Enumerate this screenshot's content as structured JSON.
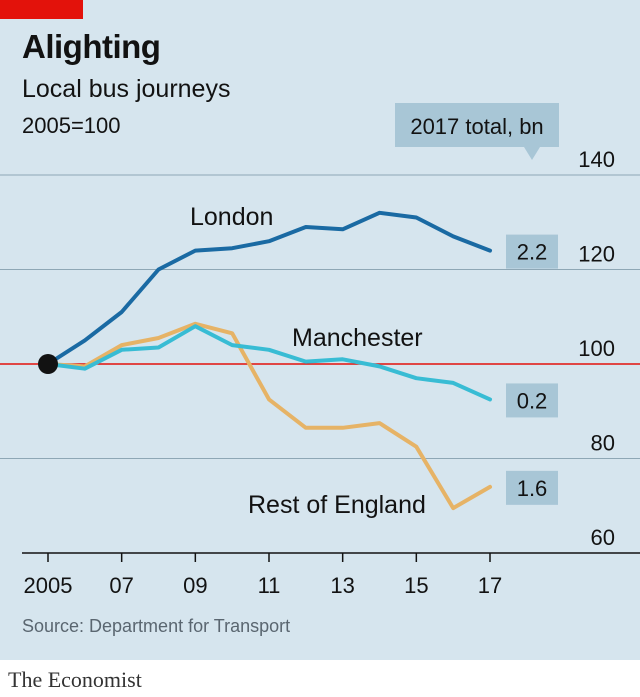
{
  "title": "Alighting",
  "subtitle": "Local bus journeys",
  "base_note": "2005=100",
  "source": "Source: Department for Transport",
  "brand": "The Economist",
  "colors": {
    "background": "#d6e5ee",
    "accent": "#e3120b",
    "london": "#1a6aa3",
    "manchester": "#38bcd4",
    "rest_of_england": "#e6b366",
    "value_box": "#a8c6d6",
    "grid": "#8ea7b5",
    "baseline_100": "#e3120b"
  },
  "chart_data": {
    "type": "line",
    "title": "Alighting",
    "subtitle": "Local bus journeys",
    "ylabel": "2005=100",
    "x": [
      2005,
      2006,
      2007,
      2008,
      2009,
      2010,
      2011,
      2012,
      2013,
      2014,
      2015,
      2016,
      2017
    ],
    "x_tick_values": [
      2005,
      2007,
      2009,
      2011,
      2013,
      2015,
      2017
    ],
    "x_tick_labels": [
      "2005",
      "07",
      "09",
      "11",
      "13",
      "15",
      "17"
    ],
    "ylim": [
      60,
      140
    ],
    "y_ticks": [
      60,
      80,
      100,
      120,
      140
    ],
    "grid": true,
    "legend_title": "2017 total, bn",
    "series": [
      {
        "name": "London",
        "color": "#1a6aa3",
        "values": [
          100,
          105,
          111,
          120,
          124,
          124.5,
          126,
          129,
          128.5,
          132,
          131,
          127,
          124
        ],
        "total_2017_bn": "2.2"
      },
      {
        "name": "Manchester",
        "color": "#38bcd4",
        "values": [
          100,
          99,
          103,
          103.5,
          108,
          104,
          103,
          100.5,
          101,
          99.5,
          97,
          96,
          92.5
        ],
        "total_2017_bn": "0.2"
      },
      {
        "name": "Rest of England",
        "color": "#e6b366",
        "values": [
          100,
          99.5,
          104,
          105.5,
          108.5,
          106.5,
          92.5,
          86.5,
          86.5,
          87.5,
          82.5,
          69.5,
          74
        ],
        "total_2017_bn": "1.6"
      }
    ]
  }
}
